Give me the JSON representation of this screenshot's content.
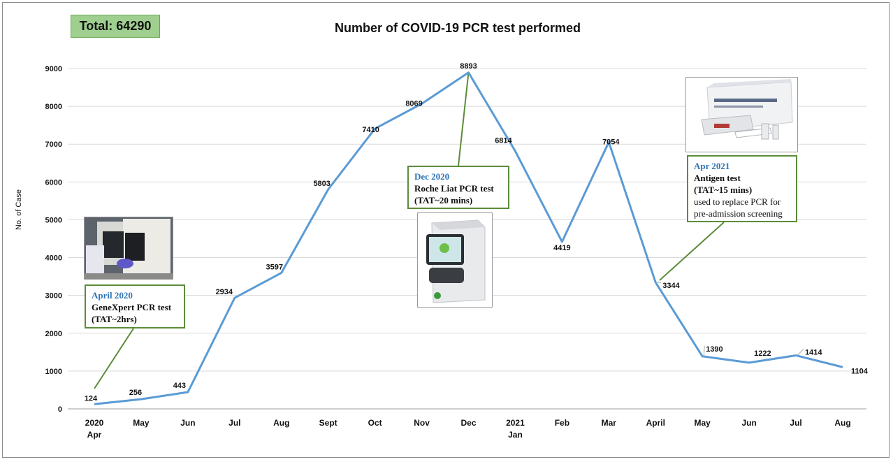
{
  "badge": {
    "total": "Total: 64290"
  },
  "chart_data": {
    "type": "line",
    "title": "Number of COVID-19 PCR test performed",
    "xlabel": "",
    "ylabel": "No. of Case",
    "ylim": [
      0,
      9000
    ],
    "yticks": [
      "0",
      "1000",
      "2000",
      "3000",
      "4000",
      "5000",
      "6000",
      "7000",
      "8000",
      "9000"
    ],
    "grid": "horizontal",
    "categories": [
      [
        "2020",
        "Apr"
      ],
      [
        "May"
      ],
      [
        "Jun"
      ],
      [
        "Jul"
      ],
      [
        "Aug"
      ],
      [
        "Sept"
      ],
      [
        "Oct"
      ],
      [
        "Nov"
      ],
      [
        "Dec"
      ],
      [
        "2021",
        "Jan"
      ],
      [
        "Feb"
      ],
      [
        "Mar"
      ],
      [
        "April"
      ],
      [
        "May"
      ],
      [
        "Jun"
      ],
      [
        "Jul"
      ],
      [
        "Aug"
      ]
    ],
    "series": [
      {
        "name": "",
        "color": "#5b9bd5",
        "values": [
          124,
          256,
          443,
          2934,
          3597,
          5803,
          7410,
          8069,
          8893,
          6814,
          4419,
          7054,
          3344,
          1390,
          1222,
          1414,
          1104
        ]
      }
    ]
  },
  "callouts": {
    "apr2020": {
      "title": "April 2020",
      "line1": "GeneXpert PCR test",
      "line2": "(TAT~2hrs)"
    },
    "dec2020": {
      "title": "Dec 2020",
      "line1": "Roche Liat PCR test",
      "line2": "(TAT~20 mins)"
    },
    "apr2021": {
      "title": "Apr 2021",
      "line1": "Antigen test",
      "line2": "(TAT~15 mins)",
      "line3": "used to replace PCR for",
      "line4": "pre-admission screening"
    }
  },
  "colors": {
    "line": "#5b9bd5",
    "callout_border": "#5b8c3a",
    "callout_title": "#2e75b6",
    "badge": "#9fcf8f"
  }
}
